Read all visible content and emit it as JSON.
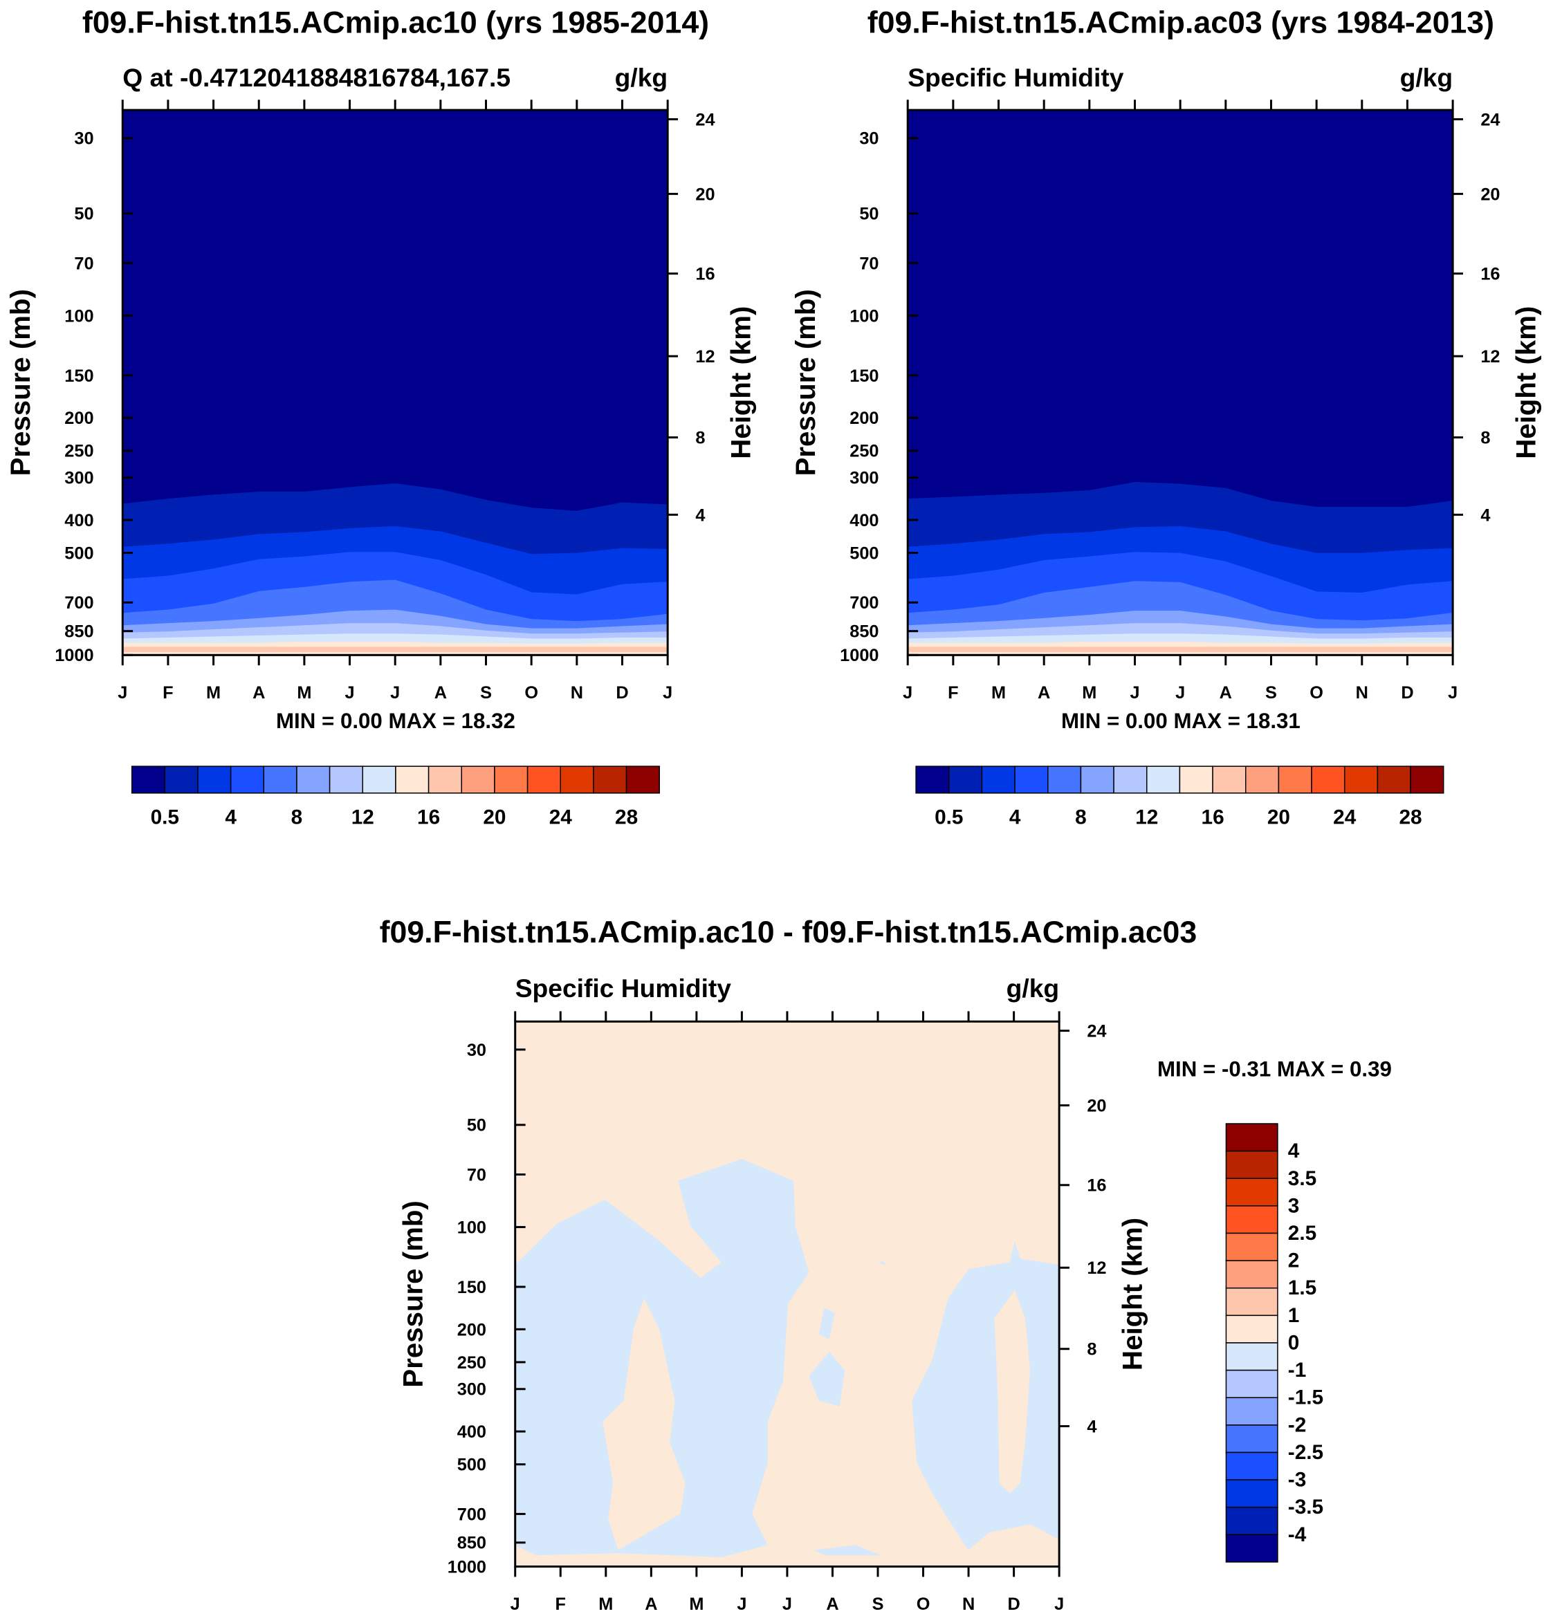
{
  "colors": {
    "levels16": [
      "#00008c",
      "#0020b4",
      "#0038e6",
      "#1a50ff",
      "#4676ff",
      "#84a4ff",
      "#b4c8ff",
      "#d8e8fc",
      "#ffe8d6",
      "#ffc6ae",
      "#ffa07e",
      "#ff7a48",
      "#ff5422",
      "#e03a00",
      "#b82400",
      "#8c0000"
    ],
    "diff_pos": "#fde9d8",
    "diff_neg": "#d6e8fb"
  },
  "months": [
    "J",
    "F",
    "M",
    "A",
    "M",
    "J",
    "J",
    "A",
    "S",
    "O",
    "N",
    "D",
    "J"
  ],
  "pressure_ticks": [
    30,
    50,
    70,
    100,
    150,
    200,
    250,
    300,
    400,
    500,
    700,
    850,
    1000
  ],
  "height_ticks": [
    24,
    20,
    16,
    12,
    8,
    4
  ],
  "height_tick_pressure": [
    26.4,
    43.8,
    75.2,
    131.7,
    228.5,
    386
  ],
  "labels": {
    "pressure_axis": "Pressure (mb)",
    "height_axis": "Height (km)"
  },
  "chart_data": [
    {
      "type": "contour",
      "title": "f09.F-hist.tn15.ACmip.ac10 (yrs 1985-2014)",
      "left_subtitle": "Q at -0.4712041884816784,167.5",
      "right_subtitle": "g/kg",
      "stats": "MIN =   0.00 MAX =  18.32",
      "colorbar_labels": [
        "0.5",
        "4",
        "8",
        "12",
        "16",
        "20",
        "24",
        "28"
      ],
      "ylim_mb": [
        24.8,
        1000
      ],
      "boundaries_mb": [
        [
          358,
          346,
          337,
          330,
          330,
          320,
          312,
          325,
          349,
          368,
          376,
          355,
          360
        ],
        [
          480,
          470,
          457,
          440,
          434,
          423,
          417,
          432,
          467,
          504,
          500,
          484,
          487
        ],
        [
          597,
          584,
          556,
          522,
          512,
          497,
          497,
          525,
          580,
          653,
          662,
          618,
          608
        ],
        [
          751,
          735,
          705,
          648,
          630,
          608,
          600,
          658,
          735,
          783,
          794,
          783,
          756
        ],
        [
          817,
          805,
          794,
          778,
          761,
          740,
          735,
          767,
          811,
          834,
          834,
          822,
          811
        ],
        [
          858,
          852,
          840,
          828,
          817,
          805,
          805,
          822,
          846,
          864,
          864,
          858,
          852
        ],
        [
          894,
          888,
          882,
          876,
          870,
          864,
          864,
          870,
          882,
          894,
          894,
          888,
          888
        ],
        [
          920,
          920,
          920,
          920,
          913,
          913,
          913,
          920,
          920,
          926,
          926,
          920,
          920
        ],
        [
          946,
          946,
          946,
          946,
          946,
          946,
          946,
          946,
          946,
          946,
          946,
          946,
          946
        ],
        [
          979,
          979,
          979,
          979,
          979,
          979,
          979,
          979,
          979,
          979,
          979,
          979,
          979
        ]
      ]
    },
    {
      "type": "contour",
      "title": "f09.F-hist.tn15.ACmip.ac03 (yrs 1984-2013)",
      "left_subtitle": "Specific Humidity",
      "right_subtitle": "g/kg",
      "stats": "MIN =   0.00 MAX =  18.31",
      "colorbar_labels": [
        "0.5",
        "4",
        "8",
        "12",
        "16",
        "20",
        "24",
        "28"
      ],
      "ylim_mb": [
        24.8,
        1000
      ],
      "boundaries_mb": [
        [
          346,
          342,
          337,
          333,
          327,
          309,
          313,
          322,
          351,
          366,
          366,
          366,
          351
        ],
        [
          480,
          470,
          457,
          440,
          434,
          420,
          417,
          432,
          470,
          500,
          500,
          490,
          484
        ],
        [
          597,
          584,
          560,
          525,
          512,
          497,
          500,
          530,
          585,
          650,
          655,
          620,
          605
        ],
        [
          751,
          735,
          710,
          655,
          630,
          605,
          610,
          665,
          740,
          783,
          790,
          780,
          750
        ],
        [
          817,
          805,
          794,
          778,
          761,
          740,
          740,
          770,
          811,
          834,
          834,
          822,
          811
        ],
        [
          858,
          852,
          840,
          828,
          817,
          805,
          805,
          822,
          846,
          864,
          864,
          858,
          852
        ],
        [
          894,
          888,
          882,
          876,
          870,
          864,
          864,
          870,
          882,
          894,
          894,
          888,
          888
        ],
        [
          920,
          920,
          920,
          920,
          913,
          913,
          913,
          920,
          920,
          926,
          926,
          920,
          920
        ],
        [
          946,
          946,
          946,
          946,
          946,
          946,
          946,
          946,
          946,
          946,
          946,
          946,
          946
        ],
        [
          979,
          979,
          979,
          979,
          979,
          979,
          979,
          979,
          979,
          979,
          979,
          979,
          979
        ]
      ]
    },
    {
      "type": "contour",
      "title": "f09.F-hist.tn15.ACmip.ac10 - f09.F-hist.tn15.ACmip.ac03",
      "left_subtitle": "Specific Humidity",
      "right_subtitle": "g/kg",
      "stats": "MIN =  -0.31 MAX =   0.39",
      "colorbar_labels": [
        "4",
        "3.5",
        "3",
        "2.5",
        "2",
        "1.5",
        "1",
        "0",
        "-1",
        "-1.5",
        "-2",
        "-2.5",
        "-3",
        "-3.5",
        "-4"
      ],
      "ylim_mb": [
        24.8,
        1000
      ],
      "background_range": "0 to 1",
      "negative_regions_month_mb": [
        [
          [
            0,
            129
          ],
          [
            0.91,
            98
          ],
          [
            1.98,
            83
          ],
          [
            3.18,
            110
          ],
          [
            4.09,
            141
          ],
          [
            4.55,
            127
          ],
          [
            3.86,
            99
          ],
          [
            3.59,
            73
          ],
          [
            5,
            63
          ],
          [
            6.14,
            73
          ],
          [
            6.18,
            99
          ],
          [
            6.48,
            136
          ],
          [
            6.02,
            168
          ],
          [
            5.91,
            283
          ],
          [
            5.57,
            374
          ],
          [
            5.57,
            494
          ],
          [
            5.23,
            700
          ],
          [
            5.57,
            864
          ],
          [
            4.55,
            939
          ],
          [
            2.27,
            913
          ],
          [
            0.45,
            926
          ],
          [
            0,
            864
          ]
        ],
        [
          [
            12,
            129
          ],
          [
            11.14,
            124
          ],
          [
            11.02,
            110
          ],
          [
            10.91,
            127
          ],
          [
            10,
            133
          ],
          [
            9.55,
            162
          ],
          [
            9.2,
            246
          ],
          [
            8.75,
            325
          ],
          [
            8.86,
            494
          ],
          [
            9.2,
            609
          ],
          [
            9.77,
            806
          ],
          [
            10,
            894
          ],
          [
            10.45,
            794
          ],
          [
            11.36,
            751
          ],
          [
            12,
            834
          ]
        ],
        [
          [
            6.82,
            173
          ],
          [
            7.05,
            179
          ],
          [
            6.93,
            214
          ],
          [
            6.7,
            207
          ]
        ],
        [
          [
            6.48,
            274
          ],
          [
            6.93,
            233
          ],
          [
            7.27,
            264
          ],
          [
            7.16,
            337
          ],
          [
            6.7,
            325
          ]
        ],
        [
          [
            6.59,
            894
          ],
          [
            7.5,
            864
          ],
          [
            8.07,
            926
          ],
          [
            6.82,
            926
          ]
        ]
      ],
      "positive_islands_month_mb": [
        [
          [
            2.84,
            162
          ],
          [
            3.18,
            200
          ],
          [
            3.52,
            325
          ],
          [
            3.41,
            430
          ],
          [
            3.75,
            568
          ],
          [
            3.64,
            700
          ],
          [
            2.27,
            894
          ],
          [
            2.05,
            726
          ],
          [
            2.16,
            568
          ],
          [
            1.93,
            374
          ],
          [
            2.39,
            325
          ],
          [
            2.61,
            200
          ]
        ],
        [
          [
            11.02,
            153
          ],
          [
            11.25,
            186
          ],
          [
            11.36,
            264
          ],
          [
            11.25,
            430
          ],
          [
            11.14,
            568
          ],
          [
            10.91,
            609
          ],
          [
            10.68,
            568
          ],
          [
            10.64,
            303
          ],
          [
            10.57,
            186
          ]
        ]
      ]
    }
  ]
}
